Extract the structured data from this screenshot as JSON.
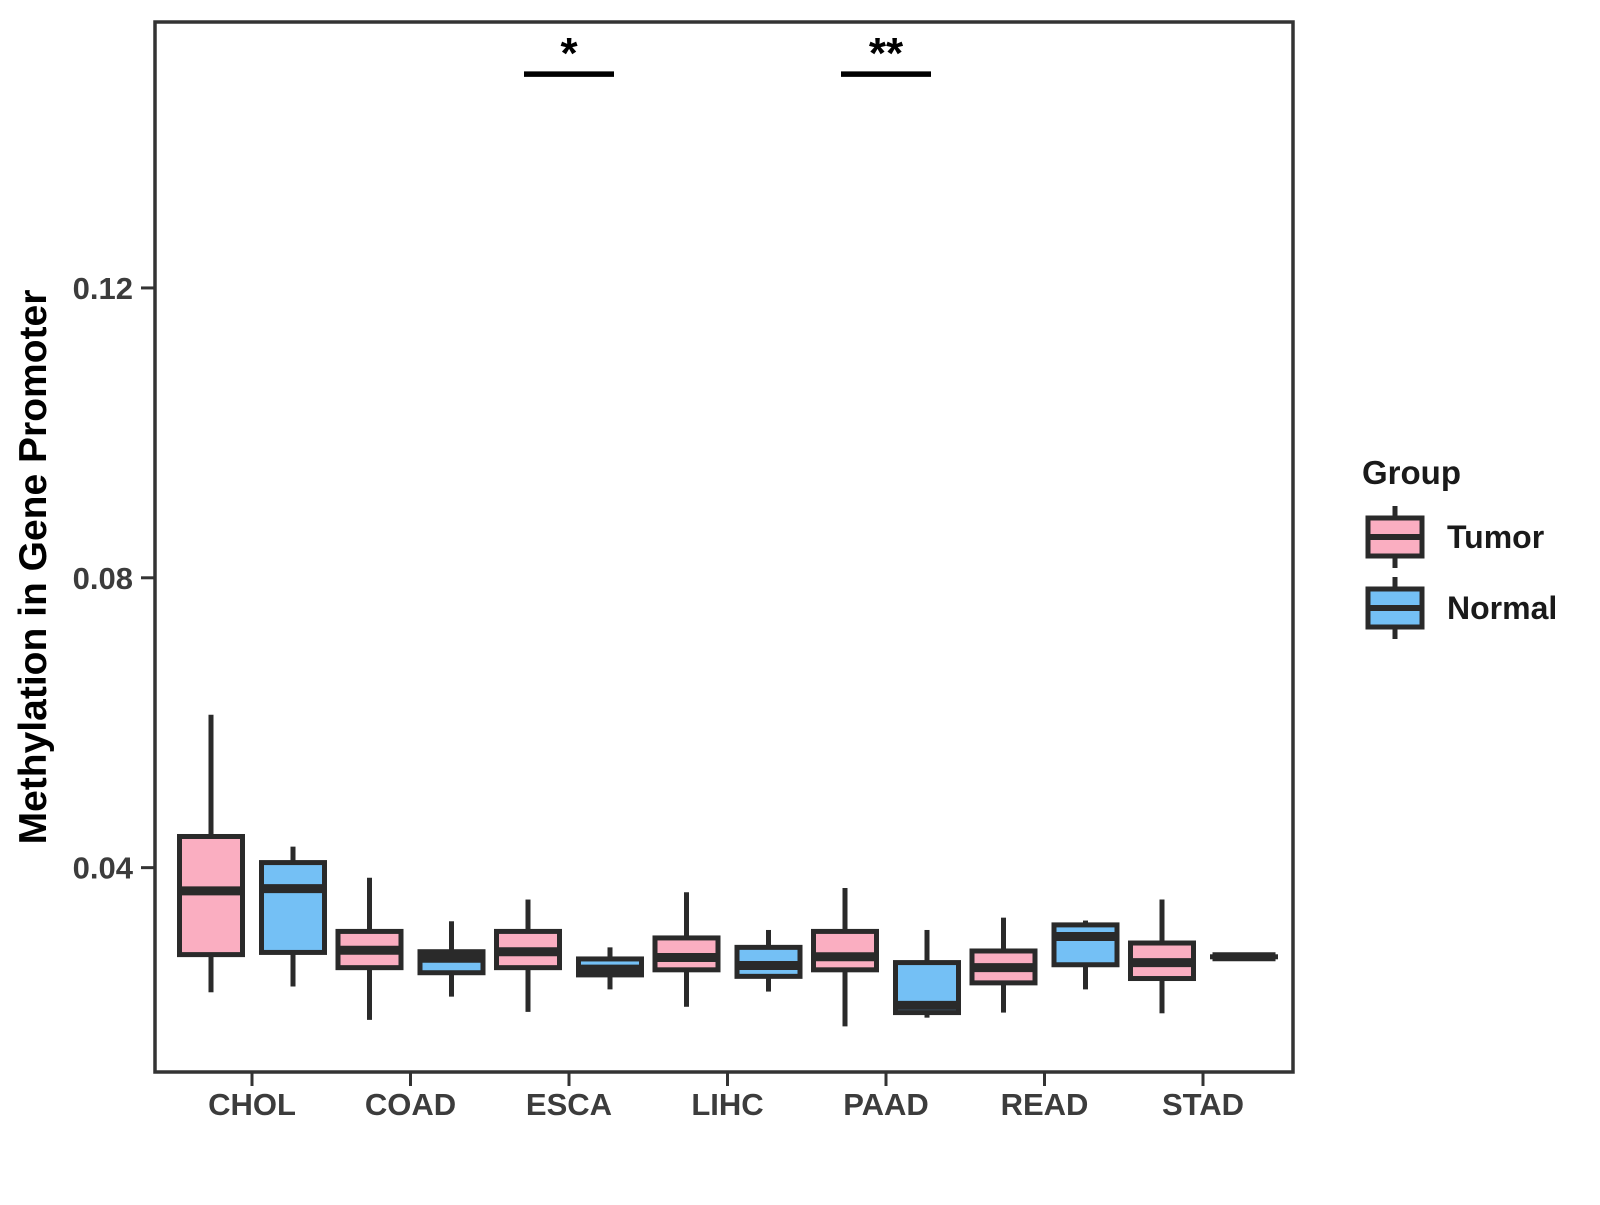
{
  "chart_data": {
    "type": "boxplot",
    "title": "",
    "xlabel": "",
    "ylabel": "Methylation in Gene Promoter",
    "categories": [
      "CHOL",
      "COAD",
      "ESCA",
      "LIHC",
      "PAAD",
      "READ",
      "STAD"
    ],
    "yticks": [
      "0.04",
      "0.08",
      "0.12"
    ],
    "ytick_values": [
      0.04,
      0.08,
      0.12
    ],
    "ylim": [
      0.0118,
      0.1567
    ],
    "grid": "off",
    "legend_position": "right",
    "colors": {
      "tumor_fill": "#FAAEC1",
      "normal_fill": "#74C0F5",
      "box_border": "#2A2A2A",
      "panel_border": "#333333",
      "axis_text": "#3C3C3C",
      "annotation": "#000000"
    },
    "series": [
      {
        "name": "Tumor",
        "color": "#FAAEC1",
        "stats": [
          {
            "min": 0.0228,
            "q1": 0.028,
            "median": 0.0368,
            "q3": 0.0443,
            "max": 0.0611
          },
          {
            "min": 0.019,
            "q1": 0.0262,
            "median": 0.0286,
            "q3": 0.0312,
            "max": 0.0386
          },
          {
            "min": 0.0201,
            "q1": 0.0262,
            "median": 0.0284,
            "q3": 0.0312,
            "max": 0.0356
          },
          {
            "min": 0.0208,
            "q1": 0.0259,
            "median": 0.0276,
            "q3": 0.0303,
            "max": 0.0366
          },
          {
            "min": 0.0181,
            "q1": 0.0259,
            "median": 0.0277,
            "q3": 0.0312,
            "max": 0.0372
          },
          {
            "min": 0.02,
            "q1": 0.0241,
            "median": 0.0262,
            "q3": 0.0285,
            "max": 0.0331
          },
          {
            "min": 0.0199,
            "q1": 0.0247,
            "median": 0.0269,
            "q3": 0.0296,
            "max": 0.0356
          }
        ]
      },
      {
        "name": "Normal",
        "color": "#74C0F5",
        "stats": [
          {
            "min": 0.0236,
            "q1": 0.0283,
            "median": 0.0371,
            "q3": 0.0407,
            "max": 0.0429
          },
          {
            "min": 0.0222,
            "q1": 0.0255,
            "median": 0.0275,
            "q3": 0.0284,
            "max": 0.0326
          },
          {
            "min": 0.0232,
            "q1": 0.0252,
            "median": 0.026,
            "q3": 0.0274,
            "max": 0.029
          },
          {
            "min": 0.0229,
            "q1": 0.025,
            "median": 0.0265,
            "q3": 0.029,
            "max": 0.0314
          },
          {
            "min": 0.0193,
            "q1": 0.02,
            "median": 0.021,
            "q3": 0.0269,
            "max": 0.0314
          },
          {
            "min": 0.0232,
            "q1": 0.0266,
            "median": 0.0305,
            "q3": 0.0321,
            "max": 0.0327
          },
          {
            "min": 0.0277,
            "q1": 0.0277,
            "median": 0.0277,
            "q3": 0.0277,
            "max": 0.0277
          }
        ]
      }
    ],
    "annotations": [
      {
        "category": "ESCA",
        "label": "*",
        "bar_y": 0.1495
      },
      {
        "category": "PAAD",
        "label": "**",
        "bar_y": 0.1495
      }
    ],
    "legend": {
      "title": "Group",
      "entries": [
        {
          "label": "Tumor",
          "color": "#FAAEC1"
        },
        {
          "label": "Normal",
          "color": "#74C0F5"
        }
      ]
    }
  }
}
